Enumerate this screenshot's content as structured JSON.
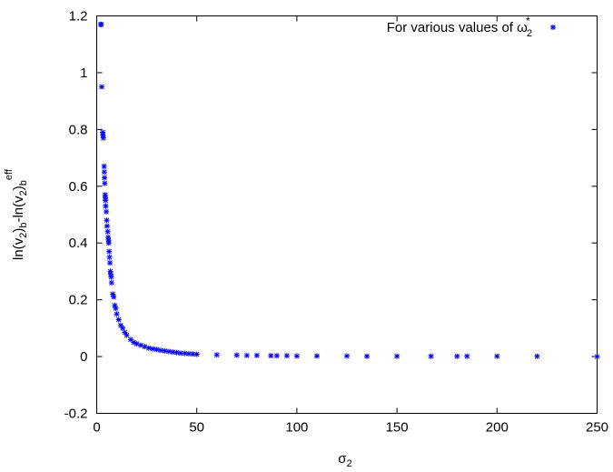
{
  "chart_data": {
    "type": "scatter",
    "title": "",
    "xlabel": "σ2",
    "xlabel_parts": {
      "base": "σ",
      "sub": "2"
    },
    "ylabel": "ln(v2)b-ln(v2)b eff",
    "ylabel_parts": {
      "p1": "ln(v",
      "s1": "2",
      "p2": ")",
      "s2": "b",
      "p3": "-ln(v",
      "s3": "2",
      "p4": ")",
      "s4": "b",
      "sup": "eff"
    },
    "xlim": [
      0,
      250
    ],
    "ylim": [
      -0.2,
      1.2
    ],
    "x_ticks": [
      0,
      50,
      100,
      150,
      200,
      250
    ],
    "y_ticks": [
      -0.2,
      0,
      0.2,
      0.4,
      0.6,
      0.8,
      1,
      1.2
    ],
    "x_tick_labels": [
      "0",
      "50",
      "100",
      "150",
      "200",
      "250"
    ],
    "y_tick_labels": [
      "-0.2",
      "0",
      "0.2",
      "0.4",
      "0.6",
      "0.8",
      "1",
      "1.2"
    ],
    "grid": false,
    "legend_position": "top-right",
    "marker_color": "#0000ff",
    "series": [
      {
        "name": "For various values of ω2*",
        "name_parts": {
          "text": "For various values of ",
          "sym": "ω",
          "sub": "2",
          "sup": "*"
        },
        "marker": "asterisk",
        "points": [
          [
            2.0,
            1.17
          ],
          [
            2.3,
            1.17
          ],
          [
            2.5,
            0.95
          ],
          [
            3.0,
            0.79
          ],
          [
            3.1,
            0.78
          ],
          [
            3.3,
            0.77
          ],
          [
            3.7,
            0.67
          ],
          [
            3.8,
            0.65
          ],
          [
            3.9,
            0.63
          ],
          [
            4.0,
            0.61
          ],
          [
            4.2,
            0.57
          ],
          [
            4.3,
            0.56
          ],
          [
            4.4,
            0.55
          ],
          [
            4.5,
            0.53
          ],
          [
            4.8,
            0.51
          ],
          [
            5.0,
            0.48
          ],
          [
            5.2,
            0.46
          ],
          [
            5.5,
            0.44
          ],
          [
            5.7,
            0.42
          ],
          [
            5.9,
            0.41
          ],
          [
            6.0,
            0.4
          ],
          [
            6.2,
            0.37
          ],
          [
            6.4,
            0.35
          ],
          [
            6.6,
            0.33
          ],
          [
            6.8,
            0.3
          ],
          [
            7.0,
            0.29
          ],
          [
            7.2,
            0.28
          ],
          [
            7.4,
            0.26
          ],
          [
            8.0,
            0.22
          ],
          [
            8.5,
            0.21
          ],
          [
            9.0,
            0.18
          ],
          [
            9.5,
            0.17
          ],
          [
            10.0,
            0.15
          ],
          [
            11.0,
            0.13
          ],
          [
            12.0,
            0.11
          ],
          [
            13.0,
            0.1
          ],
          [
            14.0,
            0.085
          ],
          [
            15.0,
            0.075
          ],
          [
            17.0,
            0.06
          ],
          [
            18.5,
            0.05
          ],
          [
            20.0,
            0.045
          ],
          [
            22.0,
            0.04
          ],
          [
            24.0,
            0.035
          ],
          [
            26.0,
            0.03
          ],
          [
            28.0,
            0.027
          ],
          [
            30.0,
            0.025
          ],
          [
            32.0,
            0.022
          ],
          [
            34.0,
            0.02
          ],
          [
            36.0,
            0.018
          ],
          [
            38.0,
            0.016
          ],
          [
            40.0,
            0.014
          ],
          [
            42.0,
            0.012
          ],
          [
            44.0,
            0.011
          ],
          [
            46.0,
            0.01
          ],
          [
            48.0,
            0.009
          ],
          [
            50.0,
            0.008
          ],
          [
            60.0,
            0.006
          ],
          [
            70.0,
            0.005
          ],
          [
            75.0,
            0.004
          ],
          [
            80.0,
            0.004
          ],
          [
            87.0,
            0.003
          ],
          [
            90.0,
            0.003
          ],
          [
            95.0,
            0.003
          ],
          [
            100.0,
            0.002
          ],
          [
            110.0,
            0.002
          ],
          [
            125.0,
            0.002
          ],
          [
            135.0,
            0.001
          ],
          [
            150.0,
            0.001
          ],
          [
            167.0,
            0.001
          ],
          [
            180.0,
            0.001
          ],
          [
            185.0,
            0.001
          ],
          [
            200.0,
            0.001
          ],
          [
            220.0,
            0.001
          ],
          [
            250.0,
            0.0
          ]
        ]
      }
    ]
  }
}
